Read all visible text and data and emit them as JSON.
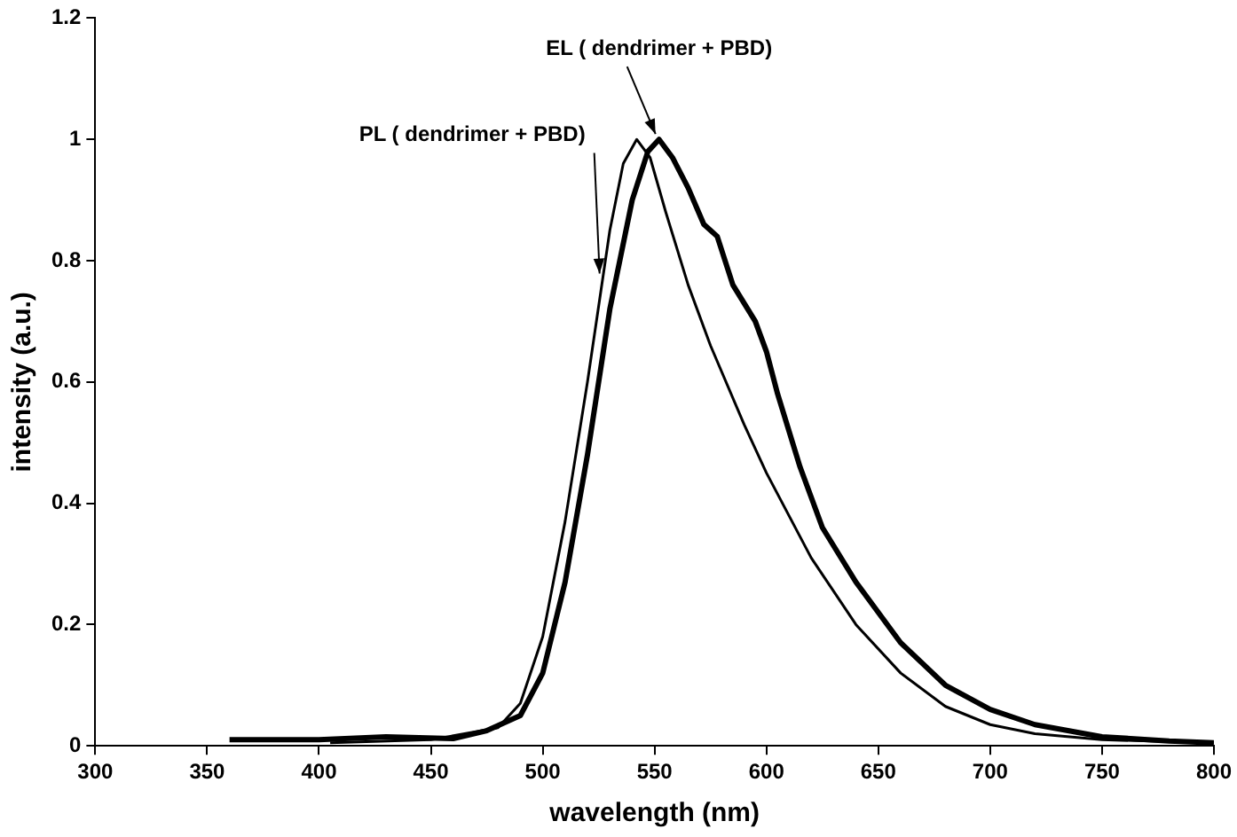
{
  "chart_data": {
    "type": "line",
    "xlabel": "wavelength (nm)",
    "ylabel": "intensity (a.u.)",
    "xlim": [
      300,
      800
    ],
    "xticks": [
      300,
      350,
      400,
      450,
      500,
      550,
      600,
      650,
      700,
      750,
      800
    ],
    "ylim": [
      0,
      1.2
    ],
    "yticks": [
      0,
      0.2,
      0.4,
      0.6,
      0.8,
      1,
      1.2
    ],
    "grid": false,
    "legend": false,
    "marker": "none",
    "line_style": "solid",
    "series": [
      {
        "color": "#000000",
        "x": [
          405,
          450,
          480,
          490,
          500,
          510,
          520,
          530,
          536,
          542,
          548,
          555,
          565,
          575,
          590,
          600,
          620,
          640,
          660,
          680,
          700,
          720,
          750,
          800
        ],
        "values": [
          0.005,
          0.01,
          0.03,
          0.07,
          0.18,
          0.37,
          0.6,
          0.85,
          0.96,
          1.0,
          0.97,
          0.88,
          0.76,
          0.66,
          0.53,
          0.45,
          0.31,
          0.2,
          0.12,
          0.065,
          0.035,
          0.02,
          0.01,
          0.005
        ]
      },
      {
        "color": "#000000",
        "x": [
          360,
          400,
          430,
          460,
          475,
          490,
          500,
          510,
          520,
          530,
          540,
          547,
          552,
          558,
          565,
          572,
          578,
          585,
          595,
          600,
          605,
          615,
          625,
          640,
          660,
          680,
          700,
          720,
          750,
          780,
          800
        ],
        "values": [
          0.01,
          0.01,
          0.015,
          0.012,
          0.025,
          0.05,
          0.12,
          0.27,
          0.48,
          0.72,
          0.9,
          0.98,
          1.0,
          0.97,
          0.92,
          0.86,
          0.84,
          0.76,
          0.7,
          0.65,
          0.58,
          0.46,
          0.36,
          0.27,
          0.17,
          0.1,
          0.06,
          0.035,
          0.015,
          0.008,
          0.005
        ]
      }
    ],
    "annotations": [
      {
        "text": "PL ( dendrimer + PBD)",
        "x": 527,
        "y": 0.77
      },
      {
        "text": "EL ( dendrimer + PBD)",
        "x": 552,
        "y": 1.0
      }
    ]
  }
}
